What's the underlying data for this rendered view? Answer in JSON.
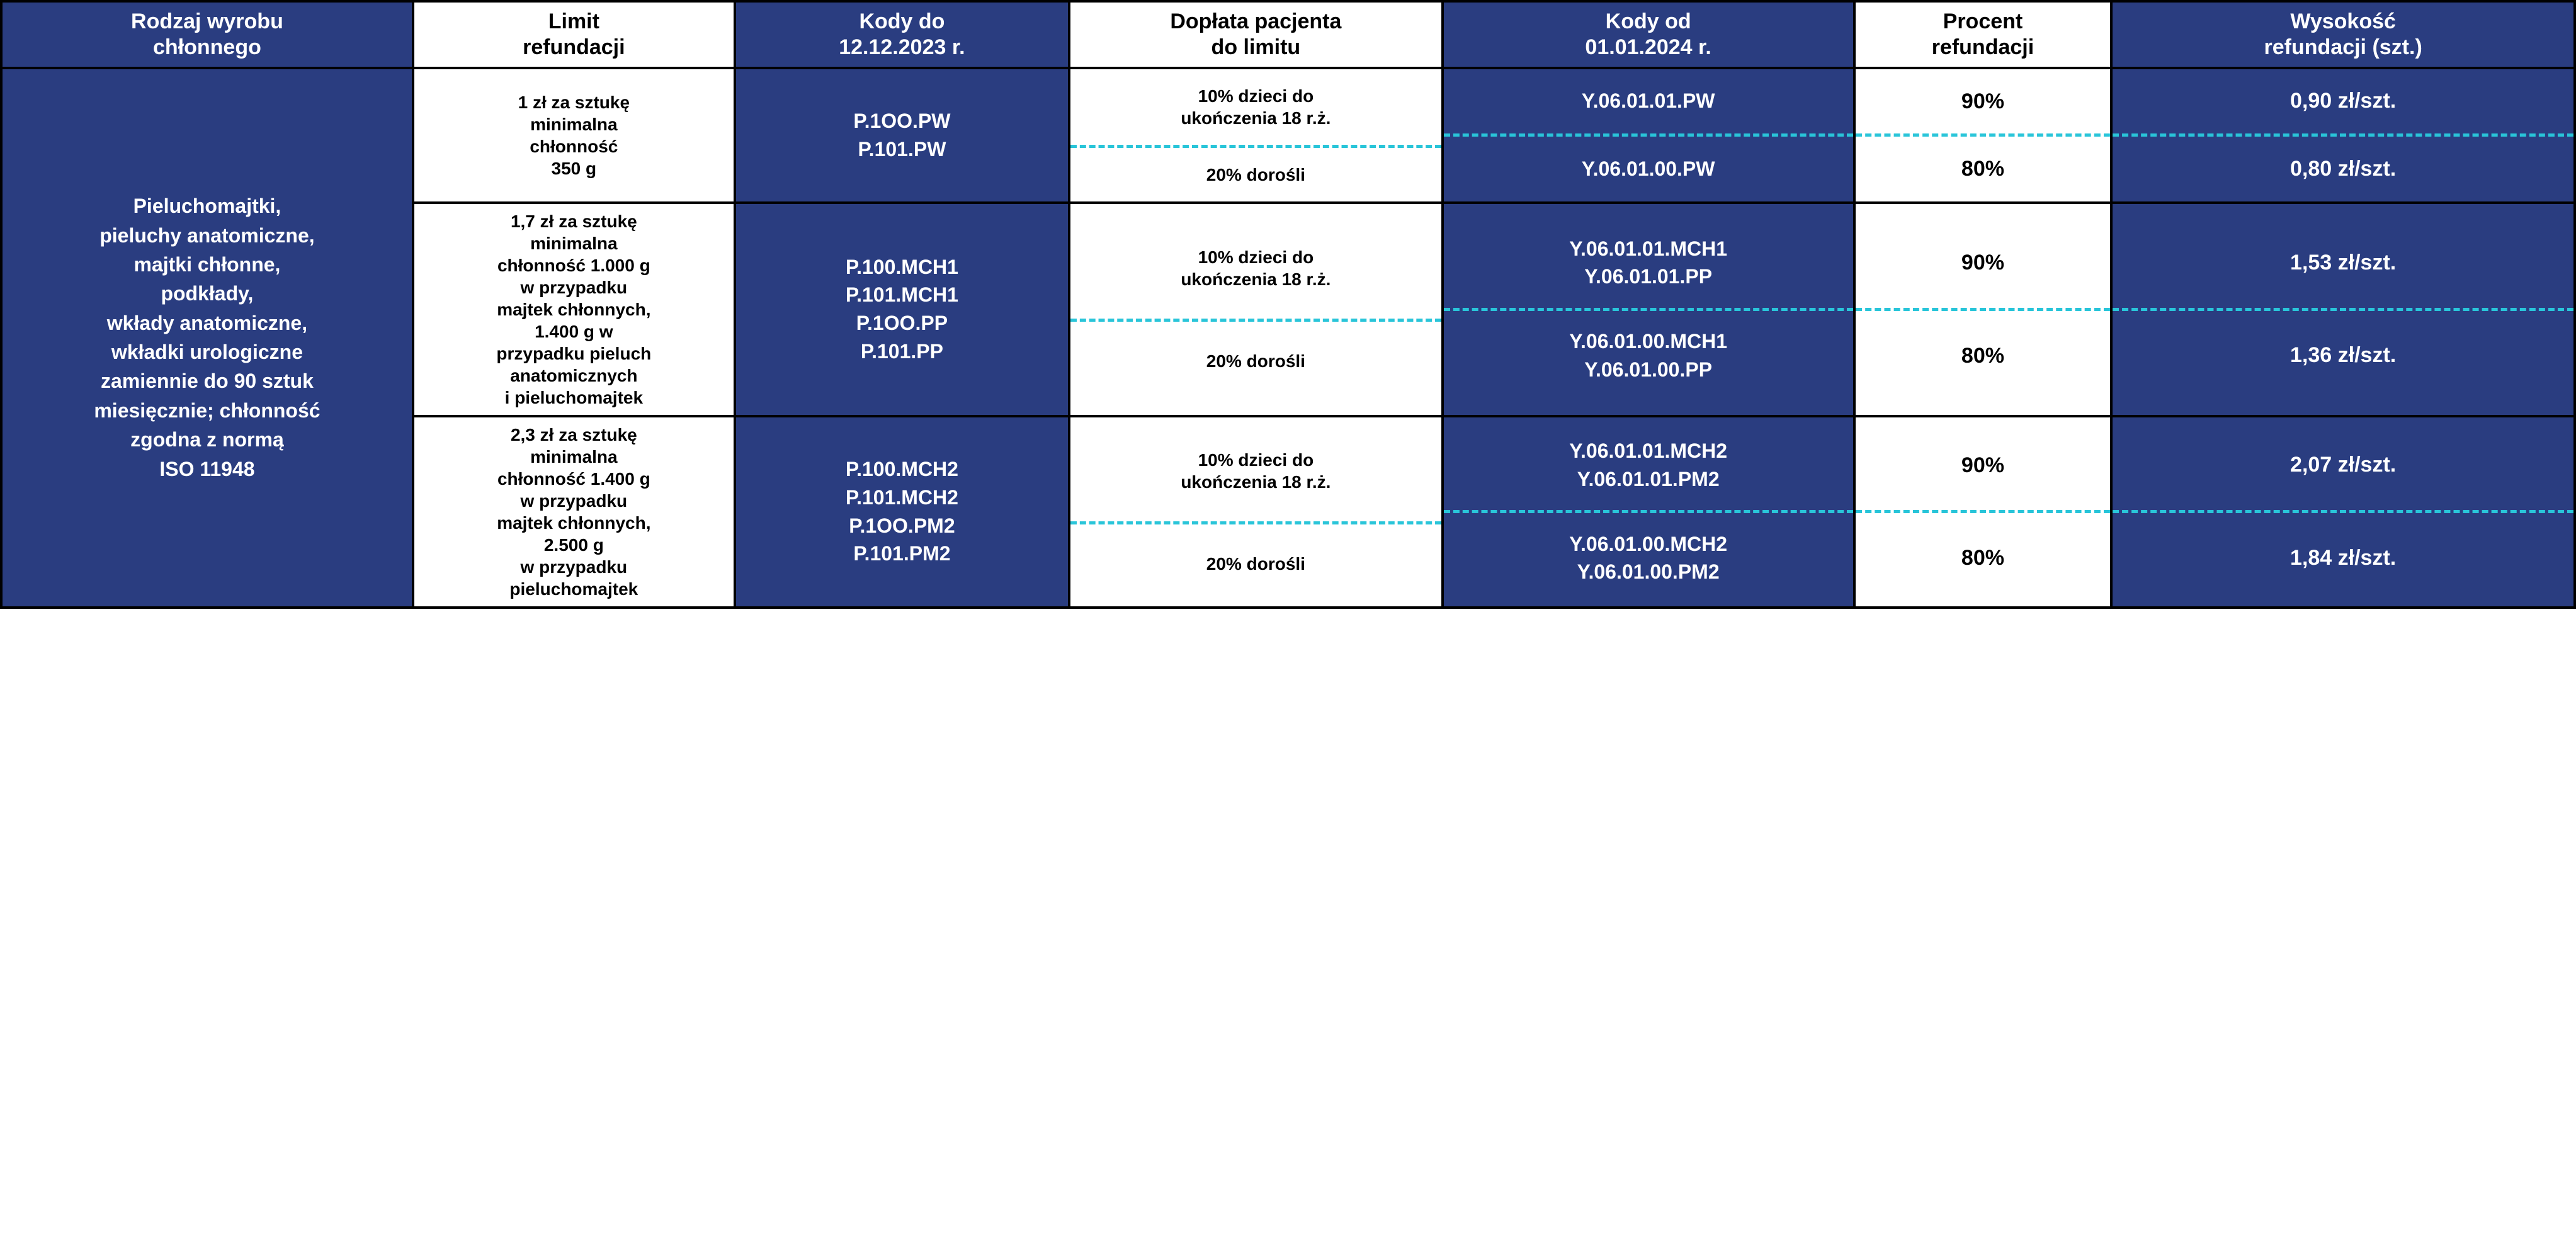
{
  "colors": {
    "blue_bg": "#2a3d80",
    "white_bg": "#ffffff",
    "dash": "#29c5d9",
    "border": "#000000",
    "text_white": "#ffffff",
    "text_black": "#000000"
  },
  "fonts": {
    "family": "Segoe UI, Arial, sans-serif",
    "header_size_pt": 26,
    "body_size_pt": 22,
    "type_cell_size_pt": 24,
    "weight": 700
  },
  "columns": [
    {
      "key": "type",
      "label": "Rodzaj wyrobu\nchłonnego",
      "bg": "blue",
      "width": 16
    },
    {
      "key": "limit",
      "label": "Limit\nrefundacji",
      "bg": "white",
      "width": 12.5
    },
    {
      "key": "codes_old",
      "label": "Kody do\n12.12.2023 r.",
      "bg": "blue",
      "width": 13
    },
    {
      "key": "copay",
      "label": "Dopłata pacjenta\ndo limitu",
      "bg": "white",
      "width": 14.5
    },
    {
      "key": "codes_new",
      "label": "Kody od\n01.01.2024 r.",
      "bg": "blue",
      "width": 16
    },
    {
      "key": "percent",
      "label": "Procent\nrefundacji",
      "bg": "white",
      "width": 10
    },
    {
      "key": "amount",
      "label": "Wysokość\nrefundacji (szt.)",
      "bg": "blue",
      "width": 18
    }
  ],
  "type_text": "Pieluchomajtki,\npieluchy anatomiczne,\nmajtki chłonne,\npodkłady,\nwkłady anatomiczne,\nwkładki urologiczne\nzamiennie do 90 sztuk\nmiesięcznie; chłonność\nzgodna z normą\nISO 11948",
  "groups": [
    {
      "limit": "1 zł za sztukę\nminimalna\nchłonność\n350 g",
      "codes_old": "P.1OO.PW\nP.101.PW",
      "copay_top": "10% dzieci do\nukończenia 18 r.ż.",
      "copay_bot": "20% dorośli",
      "codes_new_top": "Y.06.01.01.PW",
      "codes_new_bot": "Y.06.01.00.PW",
      "percent_top": "90%",
      "percent_bot": "80%",
      "amount_top": "0,90 zł/szt.",
      "amount_bot": "0,80 zł/szt."
    },
    {
      "limit": "1,7 zł za sztukę\nminimalna\nchłonność 1.000 g\nw przypadku\nmajtek chłonnych,\n1.400 g w\nprzypadku pieluch\nanatomicznych\ni pieluchomajtek",
      "codes_old": "P.100.MCH1\nP.101.MCH1\nP.1OO.PP\nP.101.PP",
      "copay_top": "10% dzieci do\nukończenia 18 r.ż.",
      "copay_bot": "20% dorośli",
      "codes_new_top": "Y.06.01.01.MCH1\nY.06.01.01.PP",
      "codes_new_bot": "Y.06.01.00.MCH1\nY.06.01.00.PP",
      "percent_top": "90%",
      "percent_bot": "80%",
      "amount_top": "1,53 zł/szt.",
      "amount_bot": "1,36 zł/szt."
    },
    {
      "limit": "2,3 zł za sztukę\nminimalna\nchłonność 1.400 g\nw przypadku\nmajtek chłonnych,\n2.500 g\nw przypadku\npieluchomajtek",
      "codes_old": "P.100.MCH2\nP.101.MCH2\nP.1OO.PM2\nP.101.PM2",
      "copay_top": "10% dzieci do\nukończenia 18 r.ż.",
      "copay_bot": "20% dorośli",
      "codes_new_top": "Y.06.01.01.MCH2\nY.06.01.01.PM2",
      "codes_new_bot": "Y.06.01.00.MCH2\nY.06.01.00.PM2",
      "percent_top": "90%",
      "percent_bot": "80%",
      "amount_top": "2,07 zł/szt.",
      "amount_bot": "1,84 zł/szt."
    }
  ]
}
